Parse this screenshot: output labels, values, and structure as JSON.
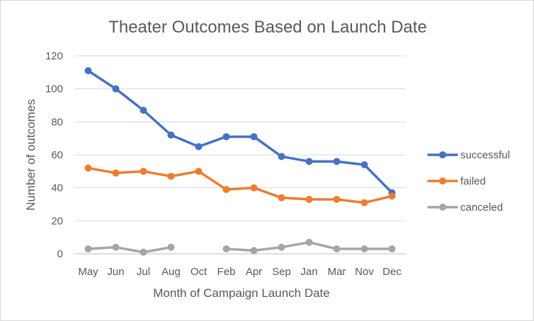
{
  "chart_data": {
    "type": "line",
    "title": "Theater Outcomes Based on Launch Date",
    "xlabel": "Month of Campaign Launch Date",
    "ylabel": "Number of outcomes",
    "categories": [
      "May",
      "Jun",
      "Jul",
      "Aug",
      "Oct",
      "Feb",
      "Apr",
      "Sep",
      "Jan",
      "Mar",
      "Nov",
      "Dec"
    ],
    "ylim": [
      0,
      120
    ],
    "yticks": [
      0,
      20,
      40,
      60,
      80,
      100,
      120
    ],
    "grid": true,
    "legend_position": "right",
    "series": [
      {
        "name": "successful",
        "color": "#4472c4",
        "values": [
          111,
          100,
          87,
          72,
          65,
          71,
          71,
          59,
          56,
          56,
          54,
          37
        ]
      },
      {
        "name": "failed",
        "color": "#ed7d31",
        "values": [
          52,
          49,
          50,
          47,
          50,
          39,
          40,
          34,
          33,
          33,
          31,
          35
        ]
      },
      {
        "name": "canceled",
        "color": "#a5a5a5",
        "values": [
          3,
          4,
          1,
          4,
          null,
          3,
          2,
          4,
          7,
          3,
          3,
          3
        ]
      }
    ]
  }
}
